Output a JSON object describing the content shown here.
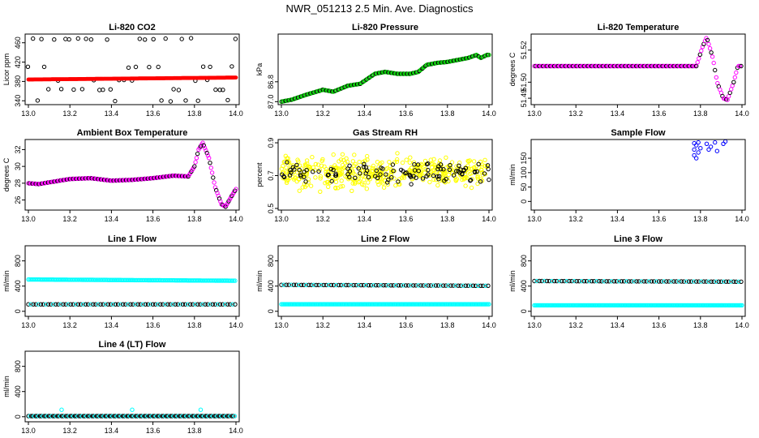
{
  "figure": {
    "title": "NWR_051213  2.5 Min. Ave. Diagnostics"
  },
  "chart_data": [
    {
      "type": "scatter",
      "title": "Li-820 CO2",
      "xlabel": "",
      "ylabel": "Licor ppm",
      "xlim": [
        13.0,
        14.0
      ],
      "ylim": [
        332,
        478
      ],
      "x_ticks": [
        "13.0",
        "13.2",
        "13.4",
        "13.6",
        "13.8",
        "14.0"
      ],
      "x_tick_values": [
        13.0,
        13.2,
        13.4,
        13.6,
        13.8,
        14.0
      ],
      "y_ticks": [
        "340",
        "380",
        "420",
        "460"
      ],
      "y_tick_values": [
        340,
        380,
        420,
        460
      ],
      "colors": {
        "red": "#ff0000",
        "black": "#000000"
      },
      "series": [
        {
          "name": "reference-levels",
          "style": "open-circle",
          "color": "#000000",
          "pattern": "levels",
          "levels": [
            340,
            363,
            382,
            410,
            468
          ],
          "step": 0.02
        },
        {
          "name": "sample-co2",
          "style": "filled-band",
          "color": "#ff0000",
          "pattern": "linear",
          "start": 384,
          "end": 388,
          "step": 0.004
        }
      ]
    },
    {
      "type": "scatter",
      "title": "Li-820 Pressure",
      "xlabel": "",
      "ylabel": "kPa",
      "xlim": [
        13.0,
        14.0
      ],
      "ylim": [
        87.03,
        86.32
      ],
      "x_ticks": [
        "13.0",
        "13.2",
        "13.4",
        "13.6",
        "13.8",
        "14.0"
      ],
      "x_tick_values": [
        13.0,
        13.2,
        13.4,
        13.6,
        13.8,
        14.0
      ],
      "y_ticks": [
        "87.0",
        "86.8"
      ],
      "y_tick_values": [
        87.0,
        86.8
      ],
      "colors": {
        "green": "#00cc00",
        "black": "#000000"
      },
      "series": [
        {
          "name": "pressure",
          "style": "open-circle",
          "color": "#00cc00",
          "overlay_color": "#000000",
          "pattern": "knots",
          "step": 0.005,
          "knots": [
            [
              13.0,
              87.0
            ],
            [
              13.05,
              86.98
            ],
            [
              13.12,
              86.93
            ],
            [
              13.2,
              86.88
            ],
            [
              13.25,
              86.9
            ],
            [
              13.32,
              86.84
            ],
            [
              13.38,
              86.82
            ],
            [
              13.45,
              86.72
            ],
            [
              13.5,
              86.7
            ],
            [
              13.56,
              86.72
            ],
            [
              13.62,
              86.72
            ],
            [
              13.66,
              86.7
            ],
            [
              13.7,
              86.63
            ],
            [
              13.75,
              86.61
            ],
            [
              13.8,
              86.6
            ],
            [
              13.85,
              86.58
            ],
            [
              13.9,
              86.56
            ],
            [
              13.94,
              86.53
            ],
            [
              13.96,
              86.56
            ],
            [
              13.99,
              86.53
            ]
          ]
        }
      ]
    },
    {
      "type": "scatter",
      "title": "Li-820 Temperature",
      "xlabel": "",
      "ylabel": "degrees C",
      "xlim": [
        13.0,
        14.0
      ],
      "ylim": [
        51.486,
        51.53
      ],
      "x_ticks": [
        "13.0",
        "13.2",
        "13.4",
        "13.6",
        "13.8",
        "14.0"
      ],
      "x_tick_values": [
        13.0,
        13.2,
        13.4,
        13.6,
        13.8,
        14.0
      ],
      "y_ticks": [
        "51.49",
        "51.50",
        "51.52"
      ],
      "y_tick_values": [
        51.49,
        51.5,
        51.52
      ],
      "colors": {
        "magenta": "#ff00ff",
        "black": "#000000"
      },
      "series": [
        {
          "name": "licor-temp",
          "style": "open-circle",
          "color": "#ff00ff",
          "overlay_color": "#000000",
          "pattern": "knots",
          "step": 0.006,
          "knots": [
            [
              13.0,
              51.51
            ],
            [
              13.78,
              51.51
            ],
            [
              13.81,
              51.522
            ],
            [
              13.83,
              51.528
            ],
            [
              13.86,
              51.515
            ],
            [
              13.88,
              51.5
            ],
            [
              13.91,
              51.49
            ],
            [
              13.93,
              51.489
            ],
            [
              13.96,
              51.5
            ],
            [
              13.98,
              51.51
            ],
            [
              13.99,
              51.51
            ]
          ]
        }
      ]
    },
    {
      "type": "scatter",
      "title": "Ambient Box Temperature",
      "xlabel": "",
      "ylabel": "degrees C",
      "xlim": [
        13.0,
        14.0
      ],
      "ylim": [
        24.8,
        33.2
      ],
      "x_ticks": [
        "13.0",
        "13.2",
        "13.4",
        "13.6",
        "13.8",
        "14.0"
      ],
      "x_tick_values": [
        13.0,
        13.2,
        13.4,
        13.6,
        13.8,
        14.0
      ],
      "y_ticks": [
        "26",
        "28",
        "30",
        "32"
      ],
      "y_tick_values": [
        26,
        28,
        30,
        32
      ],
      "colors": {
        "magenta": "#ff00ff",
        "black": "#000000"
      },
      "series": [
        {
          "name": "box-temp",
          "style": "open-circle",
          "color": "#ff00ff",
          "overlay_color": "#000000",
          "pattern": "knots",
          "step": 0.005,
          "knots": [
            [
              13.0,
              28.0
            ],
            [
              13.05,
              27.9
            ],
            [
              13.1,
              28.1
            ],
            [
              13.2,
              28.5
            ],
            [
              13.3,
              28.6
            ],
            [
              13.4,
              28.3
            ],
            [
              13.5,
              28.4
            ],
            [
              13.6,
              28.6
            ],
            [
              13.7,
              28.9
            ],
            [
              13.77,
              28.8
            ],
            [
              13.8,
              30.0
            ],
            [
              13.82,
              32.0
            ],
            [
              13.84,
              32.8
            ],
            [
              13.87,
              31.0
            ],
            [
              13.9,
              27.5
            ],
            [
              13.93,
              25.5
            ],
            [
              13.95,
              25.2
            ],
            [
              13.98,
              26.5
            ],
            [
              14.0,
              27.3
            ]
          ]
        }
      ]
    },
    {
      "type": "scatter",
      "title": "Gas Stream RH",
      "xlabel": "",
      "ylabel": "percent",
      "xlim": [
        13.0,
        14.0
      ],
      "ylim": [
        0.49,
        0.92
      ],
      "x_ticks": [
        "13.0",
        "13.2",
        "13.4",
        "13.6",
        "13.8",
        "14.0"
      ],
      "x_tick_values": [
        13.0,
        13.2,
        13.4,
        13.6,
        13.8,
        14.0
      ],
      "y_ticks": [
        "0.5",
        "0.7",
        "0.9"
      ],
      "y_tick_values": [
        0.5,
        0.7,
        0.9
      ],
      "colors": {
        "yellow": "#ffff00",
        "black": "#000000"
      },
      "series": [
        {
          "name": "rh-scatter",
          "style": "open-circle",
          "color": "#ffff00",
          "pattern": "noise",
          "center": 0.72,
          "spread": 0.13,
          "count": 420
        },
        {
          "name": "rh-reference",
          "style": "open-circle",
          "color": "#000000",
          "pattern": "noise",
          "center": 0.72,
          "spread": 0.09,
          "count": 110
        }
      ]
    },
    {
      "type": "scatter",
      "title": "Sample Flow",
      "xlabel": "",
      "ylabel": "ml/min",
      "xlim": [
        13.0,
        14.0
      ],
      "ylim": [
        -30,
        215
      ],
      "x_ticks": [
        "13.0",
        "13.2",
        "13.4",
        "13.6",
        "13.8",
        "14.0"
      ],
      "x_tick_values": [
        13.0,
        13.2,
        13.4,
        13.6,
        13.8,
        14.0
      ],
      "y_ticks": [
        "0",
        "50",
        "100",
        "150"
      ],
      "y_tick_values": [
        0,
        50,
        100,
        150
      ],
      "colors": {
        "blue": "#0000ff"
      },
      "series": [
        {
          "name": "sample-flow",
          "style": "open-circle",
          "color": "#0000ff",
          "pattern": "points",
          "points": [
            [
              13.77,
              202
            ],
            [
              13.77,
              180
            ],
            [
              13.77,
              160
            ],
            [
              13.78,
              150
            ],
            [
              13.78,
              195
            ],
            [
              13.79,
              170
            ],
            [
              13.79,
              205
            ],
            [
              13.8,
              185
            ],
            [
              13.83,
              200
            ],
            [
              13.84,
              180
            ],
            [
              13.85,
              190
            ],
            [
              13.87,
              205
            ],
            [
              13.88,
              175
            ],
            [
              13.91,
              200
            ],
            [
              13.92,
              208
            ]
          ]
        }
      ]
    },
    {
      "type": "scatter",
      "title": "Line 1 Flow",
      "xlabel": "",
      "ylabel": "ml/min",
      "xlim": [
        13.0,
        14.0
      ],
      "ylim": [
        -80,
        1040
      ],
      "x_ticks": [
        "13.0",
        "13.2",
        "13.4",
        "13.6",
        "13.8",
        "14.0"
      ],
      "x_tick_values": [
        13.0,
        13.2,
        13.4,
        13.6,
        13.8,
        14.0
      ],
      "y_ticks": [
        "0",
        "400",
        "800"
      ],
      "y_tick_values": [
        0,
        400,
        800
      ],
      "colors": {
        "cyan": "#00ffff",
        "black": "#000000"
      },
      "series": [
        {
          "name": "line1-cyan",
          "style": "open-circle",
          "color": "#00ffff",
          "pattern": "linear",
          "start": 505,
          "end": 485,
          "step": 0.006
        },
        {
          "name": "line1-black",
          "style": "open-circle",
          "color": "#000000",
          "overlay_color": "#00ffff",
          "pattern": "linear",
          "start": 110,
          "end": 110,
          "step": 0.012
        }
      ]
    },
    {
      "type": "scatter",
      "title": "Line 2 Flow",
      "xlabel": "",
      "ylabel": "ml/min",
      "xlim": [
        13.0,
        14.0
      ],
      "ylim": [
        -80,
        1040
      ],
      "x_ticks": [
        "13.0",
        "13.2",
        "13.4",
        "13.6",
        "13.8",
        "14.0"
      ],
      "x_tick_values": [
        13.0,
        13.2,
        13.4,
        13.6,
        13.8,
        14.0
      ],
      "y_ticks": [
        "0",
        "400",
        "800"
      ],
      "y_tick_values": [
        0,
        400,
        800
      ],
      "colors": {
        "cyan": "#00ffff",
        "black": "#000000"
      },
      "series": [
        {
          "name": "line2-black",
          "style": "open-circle",
          "color": "#000000",
          "overlay_color": "#00ffff",
          "pattern": "linear",
          "start": 420,
          "end": 405,
          "step": 0.012
        },
        {
          "name": "line2-cyan",
          "style": "open-circle",
          "color": "#00ffff",
          "pattern": "linear",
          "start": 112,
          "end": 112,
          "step": 0.005
        }
      ]
    },
    {
      "type": "scatter",
      "title": "Line 3 Flow",
      "xlabel": "",
      "ylabel": "ml/min",
      "xlim": [
        13.0,
        14.0
      ],
      "ylim": [
        -80,
        1040
      ],
      "x_ticks": [
        "13.0",
        "13.2",
        "13.4",
        "13.6",
        "13.8",
        "14.0"
      ],
      "x_tick_values": [
        13.0,
        13.2,
        13.4,
        13.6,
        13.8,
        14.0
      ],
      "y_ticks": [
        "0",
        "400",
        "800"
      ],
      "y_tick_values": [
        0,
        400,
        800
      ],
      "colors": {
        "cyan": "#00ffff",
        "black": "#000000"
      },
      "series": [
        {
          "name": "line3-black",
          "style": "open-circle",
          "color": "#000000",
          "overlay_color": "#00ffff",
          "pattern": "linear",
          "start": 480,
          "end": 470,
          "step": 0.012
        },
        {
          "name": "line3-cyan",
          "style": "open-circle",
          "color": "#00ffff",
          "pattern": "linear",
          "start": 95,
          "end": 95,
          "step": 0.005
        }
      ]
    },
    {
      "type": "scatter",
      "title": "Line 4 (LT) Flow",
      "xlabel": "",
      "ylabel": "ml/min",
      "xlim": [
        13.0,
        14.0
      ],
      "ylim": [
        -80,
        1040
      ],
      "x_ticks": [
        "13.0",
        "13.2",
        "13.4",
        "13.6",
        "13.8",
        "14.0"
      ],
      "x_tick_values": [
        13.0,
        13.2,
        13.4,
        13.6,
        13.8,
        14.0
      ],
      "y_ticks": [
        "0",
        "400",
        "800"
      ],
      "y_tick_values": [
        0,
        400,
        800
      ],
      "colors": {
        "cyan": "#00ffff",
        "black": "#000000"
      },
      "series": [
        {
          "name": "line4-black",
          "style": "open-circle",
          "color": "#000000",
          "overlay_color": "#00ffff",
          "pattern": "linear",
          "start": 10,
          "end": 10,
          "step": 0.007
        },
        {
          "name": "line4-spikes",
          "style": "open-circle",
          "color": "#00ffff",
          "pattern": "points",
          "points": [
            [
              13.16,
              110
            ],
            [
              13.5,
              110
            ],
            [
              13.83,
              110
            ]
          ]
        }
      ]
    }
  ]
}
